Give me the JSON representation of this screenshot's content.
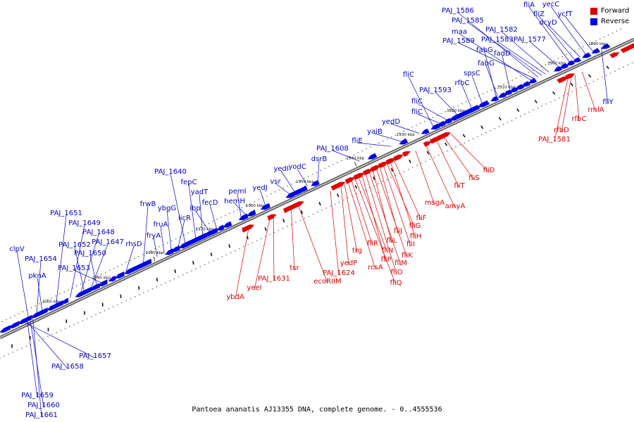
{
  "colors": {
    "forward": "#e00000",
    "reverse": "#0000e6",
    "backbone": "#7a7a7a",
    "label_forward": "#e00000",
    "label_reverse": "#0000c8"
  },
  "legend": {
    "forward_label": "Forward",
    "reverse_label": "Reverse"
  },
  "caption": "Pantoea ananatis AJ13355 DNA, complete genome. - 0..4555536",
  "ticks": [
    "2000 kbp",
    "1990 kbp",
    "1980 kbp",
    "1970 kbp",
    "1960 kbp",
    "1950 kbp",
    "1940 kbp",
    "1930 kbp",
    "1920 kbp",
    "1910 kbp",
    "1900 kbp",
    "1890 kbp"
  ],
  "reverse_labels": [
    "clpV",
    "PAJ_1654",
    "pknA",
    "PAJ_1651",
    "PAJ_1649",
    "PAJ_1648",
    "PAJ_1652",
    "PAJ_1647",
    "PAJ_1650",
    "PAJ_1653",
    "rhsD",
    "frwB",
    "fryA",
    "fruA",
    "ybgG",
    "licR",
    "PAJ_1640",
    "fepC",
    "yadT",
    "ibp",
    "fecD",
    "pemI",
    "hemH",
    "yedJ",
    "vsr",
    "yedI",
    "yodC",
    "dsrB",
    "PAJ_1608",
    "fliE",
    "yaiB",
    "yedD",
    "fliC",
    "fliC",
    "fliC",
    "PAJ_1593",
    "rfbC",
    "spsC",
    "fabG",
    "fabG",
    "fadD",
    "maa",
    "PAJ_1589",
    "PAJ_1586",
    "PAJ_1585",
    "PAJ_1583",
    "PAJ_1582",
    "PAJ_1577",
    "fliA",
    "fliZ",
    "dcyD",
    "yecC",
    "ycfT",
    "fliY",
    "PAJ_1657",
    "PAJ_1658",
    "PAJ_1659",
    "PAJ_1660",
    "PAJ_1661"
  ],
  "forward_labels": [
    "ybdA",
    "yeeI",
    "PAJ_1631",
    "tsr",
    "ecoRIIM",
    "PAJ_1624",
    "yedP",
    "trg",
    "rcsA",
    "fliR",
    "fliQ",
    "fliN",
    "fliP",
    "fliO",
    "fliM",
    "fliL",
    "fliK",
    "fliJ",
    "fliI",
    "fliG",
    "fliH",
    "fliF",
    "msgA",
    "amyA",
    "fliT",
    "fliS",
    "fliD",
    "PAJ_1581",
    "rfbD",
    "rfbC",
    "rmlA"
  ]
}
